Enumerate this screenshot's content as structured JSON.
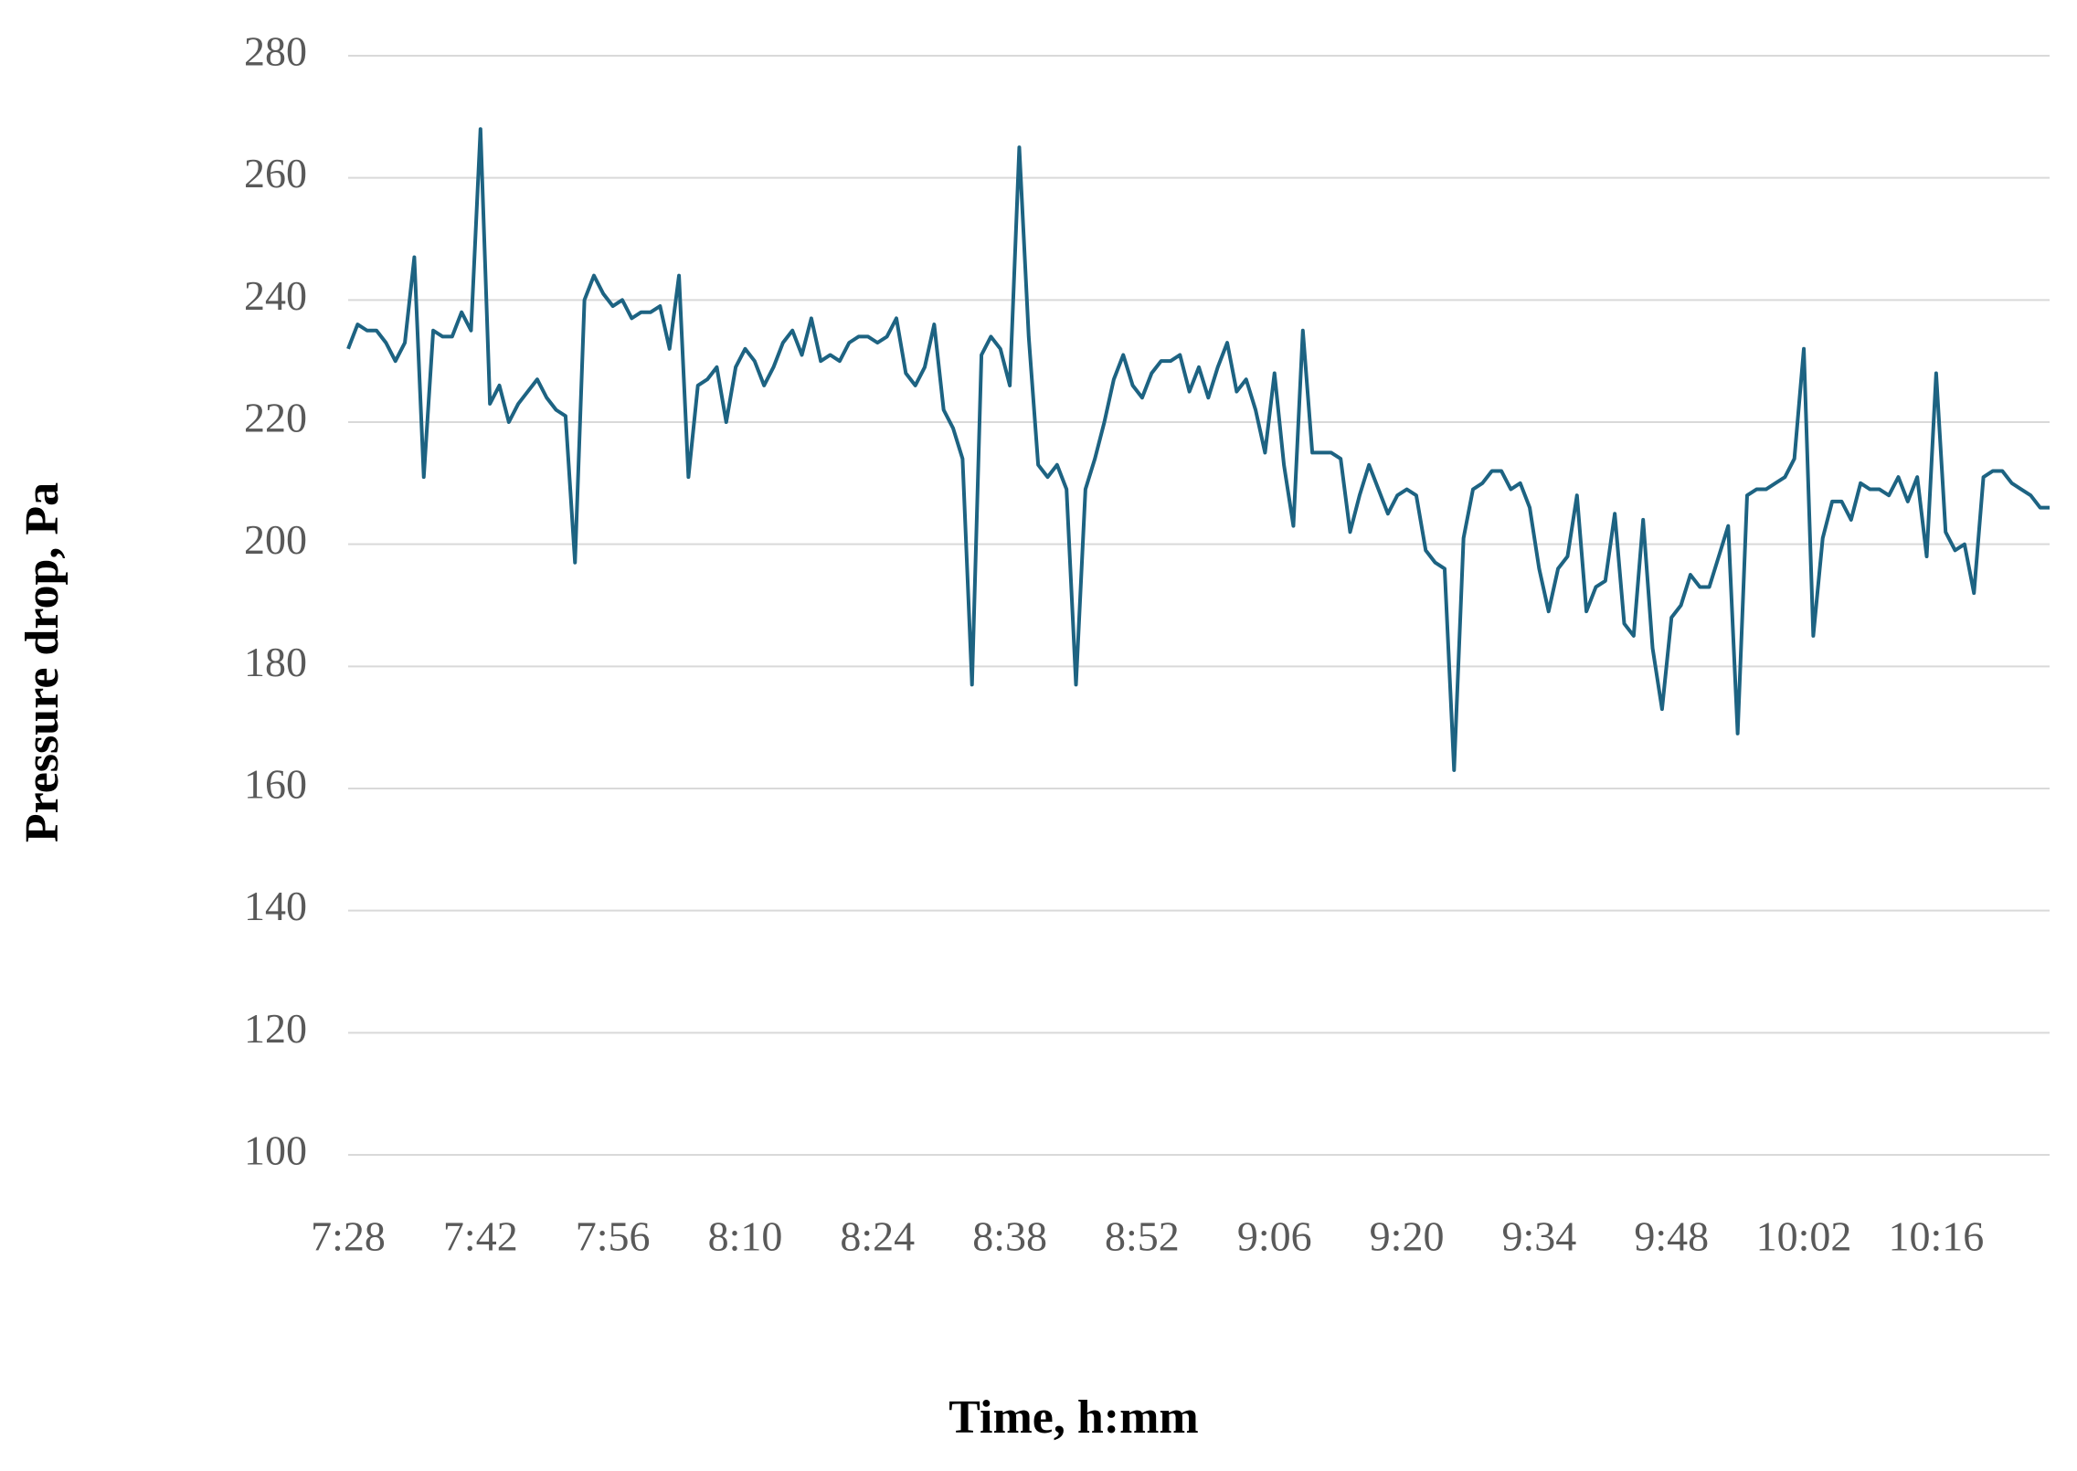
{
  "chart_data": {
    "type": "line",
    "x_label": "Time, h:mm",
    "y_label": "Pressure drop, Pa",
    "color": "#1d6382",
    "grid": true,
    "ylim": [
      100,
      280
    ],
    "yticks": [
      100,
      120,
      140,
      160,
      180,
      200,
      220,
      240,
      260,
      280
    ],
    "categories": [
      "7:28",
      null,
      null,
      null,
      null,
      null,
      null,
      null,
      null,
      null,
      null,
      null,
      null,
      null,
      "7:42",
      null,
      null,
      null,
      null,
      null,
      null,
      null,
      null,
      null,
      null,
      null,
      null,
      null,
      "7:56",
      null,
      null,
      null,
      null,
      null,
      null,
      null,
      null,
      null,
      null,
      null,
      null,
      null,
      "8:10",
      null,
      null,
      null,
      null,
      null,
      null,
      null,
      null,
      null,
      null,
      null,
      null,
      null,
      "8:24",
      null,
      null,
      null,
      null,
      null,
      null,
      null,
      null,
      null,
      null,
      null,
      null,
      null,
      "8:38",
      null,
      null,
      null,
      null,
      null,
      null,
      null,
      null,
      null,
      null,
      null,
      null,
      null,
      "8:52",
      null,
      null,
      null,
      null,
      null,
      null,
      null,
      null,
      null,
      null,
      null,
      null,
      null,
      "9:06",
      null,
      null,
      null,
      null,
      null,
      null,
      null,
      null,
      null,
      null,
      null,
      null,
      null,
      "9:20",
      null,
      null,
      null,
      null,
      null,
      null,
      null,
      null,
      null,
      null,
      null,
      null,
      null,
      "9:34",
      null,
      null,
      null,
      null,
      null,
      null,
      null,
      null,
      null,
      null,
      null,
      null,
      null,
      "9:48",
      null,
      null,
      null,
      null,
      null,
      null,
      null,
      null,
      null,
      null,
      null,
      null,
      null,
      "10:02",
      null,
      null,
      null,
      null,
      null,
      null,
      null,
      null,
      null,
      null,
      null,
      null,
      null,
      "10:16",
      null,
      null,
      null,
      null,
      null,
      null,
      null,
      null,
      null,
      null,
      null,
      null
    ],
    "values": [
      232,
      236,
      235,
      235,
      233,
      230,
      233,
      247,
      211,
      235,
      234,
      234,
      238,
      235,
      268,
      223,
      226,
      220,
      223,
      225,
      227,
      224,
      222,
      221,
      197,
      240,
      244,
      241,
      239,
      240,
      237,
      238,
      238,
      239,
      232,
      244,
      211,
      226,
      227,
      229,
      220,
      229,
      232,
      230,
      226,
      229,
      233,
      235,
      231,
      237,
      230,
      231,
      230,
      233,
      234,
      234,
      233,
      234,
      237,
      228,
      226,
      229,
      236,
      222,
      219,
      214,
      177,
      231,
      234,
      232,
      226,
      265,
      234,
      213,
      211,
      213,
      209,
      177,
      209,
      214,
      220,
      227,
      231,
      226,
      224,
      228,
      230,
      230,
      231,
      225,
      229,
      224,
      229,
      233,
      225,
      227,
      222,
      215,
      228,
      213,
      203,
      235,
      215,
      215,
      215,
      214,
      202,
      208,
      213,
      209,
      205,
      208,
      209,
      208,
      199,
      197,
      196,
      163,
      201,
      209,
      210,
      212,
      212,
      209,
      210,
      206,
      196,
      189,
      196,
      198,
      208,
      189,
      193,
      194,
      205,
      187,
      185,
      204,
      183,
      173,
      188,
      190,
      195,
      193,
      193,
      198,
      203,
      169,
      208,
      209,
      209,
      210,
      211,
      214,
      232,
      185,
      201,
      207,
      207,
      204,
      210,
      209,
      209,
      208,
      211,
      207,
      211,
      198,
      228,
      202,
      199,
      200,
      192,
      211,
      212,
      212,
      210,
      209,
      208,
      206,
      206
    ]
  }
}
